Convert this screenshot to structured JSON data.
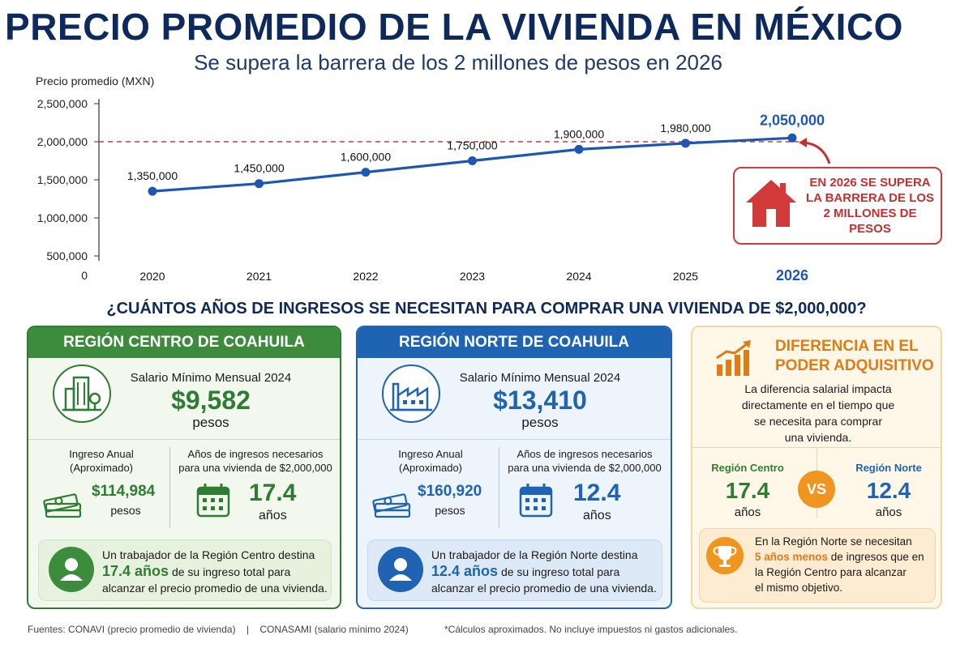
{
  "header": {
    "title": "PRECIO PROMEDIO DE LA VIVIENDA EN MÉXICO",
    "subtitle": "Se supera la barrera de los 2 millones de pesos en 2026"
  },
  "chart_data": {
    "type": "line",
    "ylabel": "Precio promedio (MXN)",
    "x": [
      "2020",
      "2021",
      "2022",
      "2023",
      "2024",
      "2025",
      "2026"
    ],
    "y_ticks": [
      "2,500,000",
      "2,000,000",
      "1,500,000",
      "1,000,000",
      "500,000",
      "0"
    ],
    "ylim": [
      0,
      2500000
    ],
    "series": [
      {
        "values": [
          1350000,
          1450000,
          1600000,
          1750000,
          1900000,
          1980000,
          2050000
        ],
        "labels": [
          "1,350,000",
          "1,450,000",
          "1,600,000",
          "1,750,000",
          "1,900,000",
          "1,980,000",
          "2,050,000"
        ],
        "color": "#1d57b3"
      }
    ],
    "reference_line": {
      "value": 2000000,
      "color": "#d23a3a",
      "style": "dashed"
    },
    "highlight_year": "2026",
    "callout": "EN 2026 SE SUPERA LA BARRERA DE LOS 2 MILLONES DE PESOS",
    "grid": false
  },
  "question": "¿CUÁNTOS AÑOS DE INGRESOS SE NECESITAN PARA COMPRAR UNA VIVIENDA DE $2,000,000?",
  "regions": [
    {
      "title": "REGIÓN CENTRO DE COAHUILA",
      "icon": "city-buildings-icon",
      "salary_label": "Salario Mínimo Mensual 2024",
      "salary": "$9,582",
      "salary_unit": "pesos",
      "annual_label_1": "Ingreso Anual",
      "annual_label_2": "(Aproximado)",
      "annual": "$114,984",
      "annual_unit": "pesos",
      "years_label_1": "Años de ingresos necesarios",
      "years_label_2": "para una vivienda de $2,000,000",
      "years": "17.4",
      "years_unit": "años",
      "note_1": "Un trabajador de la Región Centro destina",
      "note_highlight": "17.4 años",
      "note_2": "de su ingreso total para",
      "note_3": "alcanzar el precio promedio de una vivienda.",
      "color": "#2f7d32"
    },
    {
      "title": "REGIÓN NORTE DE COAHUILA",
      "icon": "factory-icon",
      "salary_label": "Salario Mínimo Mensual 2024",
      "salary": "$13,410",
      "salary_unit": "pesos",
      "annual_label_1": "Ingreso Anual",
      "annual_label_2": "(Aproximado)",
      "annual": "$160,920",
      "annual_unit": "pesos",
      "years_label_1": "Años de ingresos necesarios",
      "years_label_2": "para una vivienda de $2,000,000",
      "years": "12.4",
      "years_unit": "años",
      "note_1": "Un trabajador de la Región Norte destina",
      "note_highlight": "12.4 años",
      "note_2": "de su ingreso total para",
      "note_3": "alcanzar el precio promedio de una vivienda.",
      "color": "#1f63b3"
    }
  ],
  "difference": {
    "title_1": "DIFERENCIA EN EL",
    "title_2": "PODER ADQUISITIVO",
    "text_1": "La diferencia salarial impacta",
    "text_2": "directamente en el tiempo que",
    "text_3": "se necesita para comprar",
    "text_4": "una vivienda.",
    "left_label": "Región Centro",
    "left_value": "17.4",
    "left_unit": "años",
    "vs": "VS",
    "right_label": "Región Norte",
    "right_value": "12.4",
    "right_unit": "años",
    "note_1": "En la Región Norte se necesitan",
    "note_highlight": "5 años menos",
    "note_2": "de ingresos que en",
    "note_3": "la Región Centro para alcanzar",
    "note_4": "el mismo objetivo.",
    "accent": "#e07b16"
  },
  "footer": {
    "sources": "Fuentes: CONAVI (precio promedio de vivienda)",
    "separator": "|",
    "sources_2": "CONASAMI (salario mínimo 2024)",
    "disclaimer": "*Cálculos aproximados. No incluye impuestos ni gastos adicionales."
  }
}
